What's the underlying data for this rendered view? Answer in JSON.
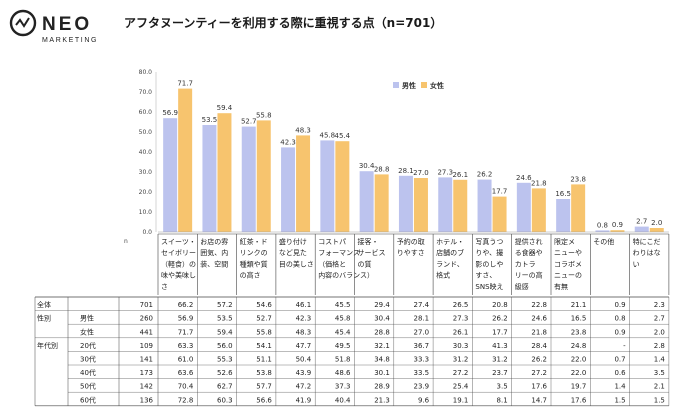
{
  "logo": {
    "word": "NEO",
    "sub": "MARKETING"
  },
  "title": "アフタヌーンティーを利用する際に重視する点（n=701）",
  "chart_data": {
    "type": "bar",
    "title": "アフタヌーンティーを利用する際に重視する点（n=701）",
    "ylim": [
      0,
      80
    ],
    "yticks": [
      "80.0",
      "70.0",
      "60.0",
      "50.0",
      "40.0",
      "30.0",
      "20.0",
      "10.0",
      "0.0"
    ],
    "y_unit_label": "n",
    "legend_position": "top-right",
    "grid": false,
    "categories": [
      [
        "スイーツ・",
        "セイボリー",
        "（軽食）の",
        "味や美味し",
        "さ"
      ],
      [
        "お店の雰",
        "囲気、内",
        "装、空間"
      ],
      [
        "紅茶・ド",
        "リンクの",
        "種類や質",
        "の高さ"
      ],
      [
        "盛り付け",
        "など見た",
        "目の美しさ"
      ],
      [
        "コストパ",
        "フォーマンス",
        "（価格と",
        "内容のバランス）"
      ],
      [
        "接客・",
        "サービス",
        "の質"
      ],
      [
        "予約の取",
        "りやすさ"
      ],
      [
        "ホテル・",
        "店舗のブ",
        "ランド、",
        "格式"
      ],
      [
        "写真うつ",
        "りや、撮",
        "影のしや",
        "すさ、",
        "SNS映え"
      ],
      [
        "提供され",
        "る食器や",
        "カトラ",
        "リーの高",
        "級感"
      ],
      [
        "限定メ",
        "ニューや",
        "コラボメ",
        "ニューの",
        "有無"
      ],
      [
        "その他"
      ],
      [
        "特にこだ",
        "わりはな",
        "い"
      ]
    ],
    "series": [
      {
        "name": "男性",
        "color": "#bcc3ee",
        "values": [
          56.9,
          53.5,
          52.7,
          42.3,
          45.8,
          30.4,
          28.1,
          27.3,
          26.2,
          24.6,
          16.5,
          0.8,
          2.7
        ]
      },
      {
        "name": "女性",
        "color": "#f7c46e",
        "values": [
          71.7,
          59.4,
          55.8,
          48.3,
          45.4,
          28.8,
          27.0,
          26.1,
          17.7,
          21.8,
          23.8,
          0.9,
          2.0
        ]
      }
    ],
    "table": {
      "rows": [
        {
          "group": "全体",
          "sub": "",
          "n": "701",
          "values": [
            "66.2",
            "57.2",
            "54.6",
            "46.1",
            "45.5",
            "29.4",
            "27.4",
            "26.5",
            "20.8",
            "22.8",
            "21.1",
            "0.9",
            "2.3"
          ]
        },
        {
          "group": "性別",
          "sub": "男性",
          "n": "260",
          "values": [
            "56.9",
            "53.5",
            "52.7",
            "42.3",
            "45.8",
            "30.4",
            "28.1",
            "27.3",
            "26.2",
            "24.6",
            "16.5",
            "0.8",
            "2.7"
          ]
        },
        {
          "group": "",
          "sub": "女性",
          "n": "441",
          "values": [
            "71.7",
            "59.4",
            "55.8",
            "48.3",
            "45.4",
            "28.8",
            "27.0",
            "26.1",
            "17.7",
            "21.8",
            "23.8",
            "0.9",
            "2.0"
          ]
        },
        {
          "group": "年代別",
          "sub": "20代",
          "n": "109",
          "values": [
            "63.3",
            "56.0",
            "54.1",
            "47.7",
            "49.5",
            "32.1",
            "36.7",
            "30.3",
            "41.3",
            "28.4",
            "24.8",
            "-",
            "2.8"
          ]
        },
        {
          "group": "",
          "sub": "30代",
          "n": "141",
          "values": [
            "61.0",
            "55.3",
            "51.1",
            "50.4",
            "51.8",
            "34.8",
            "33.3",
            "31.2",
            "31.2",
            "26.2",
            "22.0",
            "0.7",
            "1.4"
          ]
        },
        {
          "group": "",
          "sub": "40代",
          "n": "173",
          "values": [
            "63.6",
            "52.6",
            "53.8",
            "43.9",
            "48.6",
            "30.1",
            "33.5",
            "27.2",
            "23.7",
            "27.2",
            "22.0",
            "0.6",
            "3.5"
          ]
        },
        {
          "group": "",
          "sub": "50代",
          "n": "142",
          "values": [
            "70.4",
            "62.7",
            "57.7",
            "47.2",
            "37.3",
            "28.9",
            "23.9",
            "25.4",
            "3.5",
            "17.6",
            "19.7",
            "1.4",
            "2.1"
          ]
        },
        {
          "group": "",
          "sub": "60代",
          "n": "136",
          "values": [
            "72.8",
            "60.3",
            "56.6",
            "41.9",
            "40.4",
            "21.3",
            "9.6",
            "19.1",
            "8.1",
            "14.7",
            "17.6",
            "1.5",
            "1.5"
          ]
        }
      ]
    }
  }
}
